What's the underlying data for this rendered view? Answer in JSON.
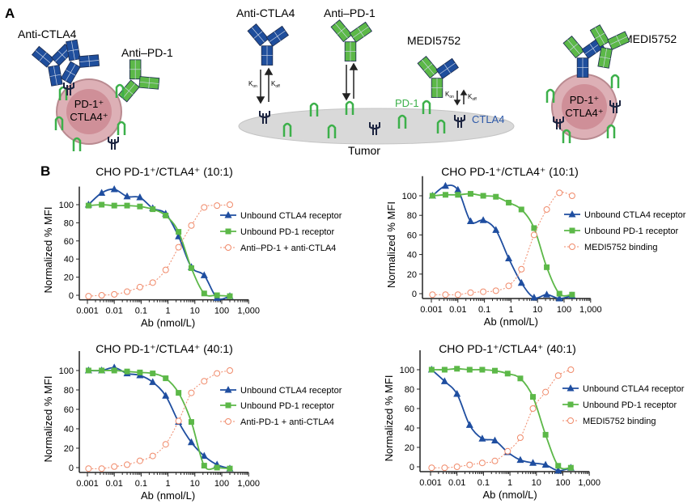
{
  "panel_a": {
    "label": "A",
    "left_cell": {
      "anti_ctla4": "Anti-CTLA4",
      "anti_pd1": "Anti–PD-1",
      "cell_line1": "PD-1⁺",
      "cell_line2": "CTLA4⁺"
    },
    "center": {
      "anti_ctla4": "Anti-CTLA4",
      "anti_pd1": "Anti–PD-1",
      "medi": "MEDI5752",
      "pd1": "PD-1",
      "ctla4": "CTLA4",
      "tumor": "Tumor",
      "kon": "K",
      "kon_sub": "on",
      "koff": "K",
      "koff_sub": "off"
    },
    "right_cell": {
      "medi": "MEDI5752",
      "cell_line1": "PD-1⁺",
      "cell_line2": "CTLA4⁺"
    },
    "colors": {
      "ctla4_antibody": "#1f4e9c",
      "pd1_antibody": "#5cb848",
      "cell": "#d9a8ae",
      "tumor": "#d8d8d8"
    }
  },
  "panel_b_label": "B",
  "colors": {
    "ctla4": "#1f4ea0",
    "pd1": "#5cb848",
    "binding": "#f08a6a"
  },
  "chart_data": [
    {
      "type": "line",
      "title": "CHO PD-1⁺/CTLA4⁺ (10:1)",
      "xlabel": "Ab (nmol/L)",
      "ylabel": "Normalized % MFI",
      "xscale": "log",
      "xlim": [
        0.001,
        1000
      ],
      "ylim": [
        -5,
        115
      ],
      "grid": false,
      "legend": "right",
      "xticks": [
        "0.001",
        "0.01",
        "0.1",
        "1",
        "10",
        "100",
        "1,000"
      ],
      "yticks": [
        "0",
        "20",
        "40",
        "60",
        "80",
        "100"
      ],
      "x": [
        0.0011,
        0.0034,
        0.01,
        0.03,
        0.09,
        0.27,
        0.82,
        2.47,
        7.4,
        22.2,
        66.7,
        200
      ],
      "series": [
        {
          "name": "Unbound CTLA4 receptor",
          "marker": "triangle",
          "values": [
            100,
            113,
            117,
            109,
            108,
            96,
            90,
            65,
            31,
            22,
            -3,
            -1
          ]
        },
        {
          "name": "Unbound PD-1 receptor",
          "marker": "square",
          "values": [
            99,
            100,
            99,
            99,
            98,
            95,
            88,
            70,
            30,
            2,
            0,
            -1
          ]
        },
        {
          "name": "Anti–PD-1 + anti-CTLA4",
          "marker": "open-circle",
          "values": [
            -1,
            0,
            1,
            4,
            9,
            14,
            28,
            53,
            77,
            97,
            99,
            100
          ]
        }
      ]
    },
    {
      "type": "line",
      "title": "CHO PD-1⁺/CTLA4⁺ (10:1)",
      "xlabel": "Ab (nmol/L)",
      "ylabel": "Normalized % MFI",
      "xscale": "log",
      "xlim": [
        0.001,
        1000
      ],
      "ylim": [
        -5,
        115
      ],
      "grid": false,
      "legend": "right",
      "xticks": [
        "0.001",
        "0.01",
        "0.1",
        "1",
        "10",
        "100",
        "1,000"
      ],
      "yticks": [
        "0",
        "20",
        "40",
        "60",
        "80",
        "100"
      ],
      "x": [
        0.0011,
        0.0034,
        0.01,
        0.03,
        0.09,
        0.27,
        0.82,
        2.47,
        7.4,
        22.2,
        66.7,
        200
      ],
      "series": [
        {
          "name": "Unbound CTLA4 receptor",
          "marker": "triangle",
          "values": [
            100,
            110,
            106,
            74,
            75,
            65,
            36,
            11,
            -4,
            -1,
            -5,
            -2
          ]
        },
        {
          "name": "Unbound PD-1 receptor",
          "marker": "square",
          "values": [
            100,
            101,
            101,
            102,
            100,
            99,
            93,
            86,
            67,
            27,
            0,
            -1
          ]
        },
        {
          "name": "MEDI5752 binding",
          "marker": "open-circle",
          "values": [
            -1,
            -1,
            -1,
            1,
            2,
            3,
            8,
            25,
            60,
            86,
            103,
            100
          ]
        }
      ]
    },
    {
      "type": "line",
      "title": "CHO PD-1⁺/CTLA4⁺ (40:1)",
      "xlabel": "Ab (nmol/L)",
      "ylabel": "Normalized % MFI",
      "xscale": "log",
      "xlim": [
        0.001,
        1000
      ],
      "ylim": [
        -5,
        115
      ],
      "grid": false,
      "legend": "right",
      "xticks": [
        "0.001",
        "0.01",
        "0.1",
        "1",
        "10",
        "100",
        "1,000"
      ],
      "yticks": [
        "0",
        "20",
        "40",
        "60",
        "80",
        "100"
      ],
      "x": [
        0.0011,
        0.0034,
        0.01,
        0.03,
        0.09,
        0.27,
        0.82,
        2.47,
        7.4,
        22.2,
        66.7,
        200
      ],
      "series": [
        {
          "name": "Unbound CTLA4 receptor",
          "marker": "triangle",
          "values": [
            100,
            100,
            103,
            97,
            95,
            88,
            74,
            47,
            26,
            12,
            3,
            -1
          ]
        },
        {
          "name": "Unbound PD-1 receptor",
          "marker": "square",
          "values": [
            100,
            100,
            100,
            99,
            98,
            97,
            92,
            77,
            47,
            2,
            0,
            -1
          ]
        },
        {
          "name": "Anti-PD-1 + anti-CTLA4",
          "marker": "open-circle",
          "values": [
            -1,
            -1,
            1,
            3,
            7,
            12,
            24,
            48,
            77,
            89,
            97,
            100
          ]
        }
      ]
    },
    {
      "type": "line",
      "title": "CHO PD-1⁺/CTLA4⁺ (40:1)",
      "xlabel": "Ab (nmol/L)",
      "ylabel": "Normalized % MFI",
      "xscale": "log",
      "xlim": [
        0.001,
        1000
      ],
      "ylim": [
        -5,
        115
      ],
      "grid": false,
      "legend": "right",
      "xticks": [
        "0.001",
        "0.01",
        "0.1",
        "1",
        "10",
        "100",
        "1,000"
      ],
      "yticks": [
        "0",
        "20",
        "40",
        "60",
        "80",
        "100"
      ],
      "x": [
        0.0011,
        0.0034,
        0.01,
        0.03,
        0.09,
        0.27,
        0.82,
        2.47,
        7.4,
        22.2,
        66.7,
        200
      ],
      "series": [
        {
          "name": "Unbound CTLA4 receptor",
          "marker": "triangle",
          "values": [
            100,
            88,
            75,
            43,
            29,
            27,
            15,
            7,
            4,
            2,
            -4,
            -1
          ]
        },
        {
          "name": "Unbound PD-1 receptor",
          "marker": "square",
          "values": [
            100,
            100,
            101,
            100,
            100,
            99,
            96,
            91,
            72,
            33,
            1,
            -1
          ]
        },
        {
          "name": "MEDI5752 binding",
          "marker": "open-circle",
          "values": [
            -1,
            -1,
            0,
            2,
            4,
            6,
            16,
            30,
            60,
            77,
            94,
            100
          ]
        }
      ]
    }
  ]
}
